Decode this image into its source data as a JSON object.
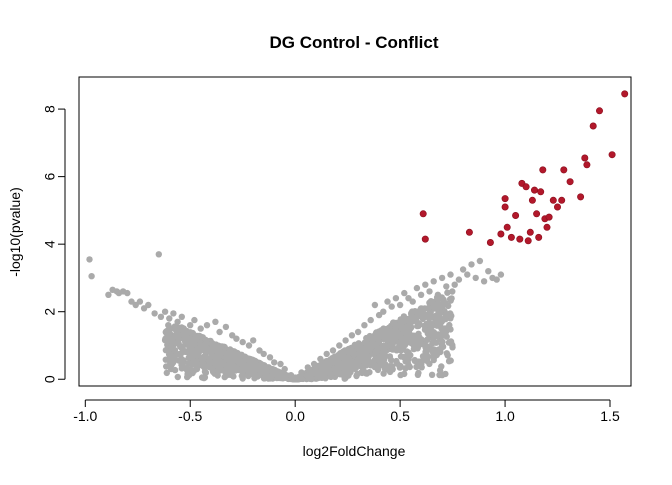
{
  "chart_data": {
    "type": "scatter",
    "title": "DG Control - Conflict",
    "xlabel": "log2FoldChange",
    "ylabel": "-log10(pvalue)",
    "xlim": [
      -1.03,
      1.6
    ],
    "ylim": [
      -0.2,
      8.95
    ],
    "xticks": [
      -1.0,
      -0.5,
      0.0,
      0.5,
      1.0,
      1.5
    ],
    "xtick_labels": [
      "-1.0",
      "-0.5",
      "0.0",
      "0.5",
      "1.0",
      "1.5"
    ],
    "yticks": [
      0,
      2,
      4,
      6,
      8
    ],
    "ytick_labels": [
      "0",
      "2",
      "4",
      "6",
      "8"
    ],
    "grid": false,
    "legend": "none",
    "colors": {
      "significant": "#b2182b",
      "nonsignificant": "#aaaaaa",
      "axis": "#000000"
    },
    "series": [
      {
        "color": "#aaaaaa",
        "points": [
          [
            -0.98,
            3.55
          ],
          [
            -0.97,
            3.05
          ],
          [
            -0.89,
            2.5
          ],
          [
            -0.87,
            2.65
          ],
          [
            -0.85,
            2.6
          ],
          [
            -0.84,
            2.55
          ],
          [
            -0.82,
            2.6
          ],
          [
            -0.8,
            2.55
          ],
          [
            -0.78,
            2.3
          ],
          [
            -0.76,
            2.2
          ],
          [
            -0.74,
            2.3
          ],
          [
            -0.72,
            2.1
          ],
          [
            -0.7,
            2.2
          ],
          [
            -0.67,
            1.95
          ],
          [
            -0.65,
            3.7
          ],
          [
            -0.64,
            1.85
          ],
          [
            -0.62,
            2.0
          ],
          [
            -0.6,
            1.8
          ],
          [
            -0.58,
            1.95
          ],
          [
            -0.56,
            1.7
          ],
          [
            -0.54,
            1.85
          ],
          [
            -0.5,
            1.6
          ],
          [
            -0.48,
            1.75
          ],
          [
            -0.45,
            1.5
          ],
          [
            -0.42,
            1.6
          ],
          [
            -0.38,
            1.7
          ],
          [
            -0.36,
            1.4
          ],
          [
            -0.33,
            1.55
          ],
          [
            -0.3,
            1.3
          ],
          [
            -0.28,
            1.2
          ],
          [
            -0.25,
            1.1
          ],
          [
            -0.22,
            1.0
          ],
          [
            -0.2,
            1.15
          ],
          [
            -0.17,
            0.85
          ],
          [
            -0.15,
            0.75
          ],
          [
            -0.12,
            0.65
          ],
          [
            -0.1,
            0.5
          ],
          [
            -0.07,
            0.45
          ],
          [
            -0.05,
            0.3
          ],
          [
            -0.02,
            0.12
          ],
          [
            0.0,
            0.05
          ],
          [
            0.03,
            0.2
          ],
          [
            0.06,
            0.35
          ],
          [
            0.09,
            0.45
          ],
          [
            0.12,
            0.6
          ],
          [
            0.15,
            0.75
          ],
          [
            0.18,
            0.85
          ],
          [
            0.21,
            1.0
          ],
          [
            0.24,
            1.15
          ],
          [
            0.27,
            1.3
          ],
          [
            0.3,
            1.4
          ],
          [
            0.33,
            1.6
          ],
          [
            0.36,
            1.75
          ],
          [
            0.38,
            2.2
          ],
          [
            0.4,
            1.9
          ],
          [
            0.42,
            2.0
          ],
          [
            0.44,
            2.3
          ],
          [
            0.46,
            2.15
          ],
          [
            0.48,
            2.4
          ],
          [
            0.5,
            2.2
          ],
          [
            0.52,
            2.55
          ],
          [
            0.54,
            2.4
          ],
          [
            0.56,
            2.3
          ],
          [
            0.58,
            2.7
          ],
          [
            0.6,
            2.5
          ],
          [
            0.62,
            2.8
          ],
          [
            0.64,
            2.6
          ],
          [
            0.66,
            2.9
          ],
          [
            0.68,
            2.5
          ],
          [
            0.7,
            3.0
          ],
          [
            0.72,
            2.75
          ],
          [
            0.74,
            3.1
          ],
          [
            0.76,
            2.8
          ],
          [
            0.78,
            2.95
          ],
          [
            0.8,
            3.25
          ],
          [
            0.82,
            3.1
          ],
          [
            0.84,
            3.4
          ],
          [
            0.86,
            3.0
          ],
          [
            0.88,
            3.5
          ],
          [
            0.9,
            2.9
          ],
          [
            0.92,
            3.2
          ],
          [
            0.94,
            3.0
          ],
          [
            0.96,
            2.95
          ],
          [
            0.98,
            3.1
          ]
        ]
      },
      {
        "color": "#b2182b",
        "points": [
          [
            0.61,
            4.9
          ],
          [
            0.62,
            4.15
          ],
          [
            0.83,
            4.35
          ],
          [
            0.93,
            4.05
          ],
          [
            0.98,
            4.3
          ],
          [
            1.0,
            5.35
          ],
          [
            1.0,
            5.1
          ],
          [
            1.01,
            4.5
          ],
          [
            1.03,
            4.2
          ],
          [
            1.05,
            4.85
          ],
          [
            1.07,
            4.15
          ],
          [
            1.08,
            5.8
          ],
          [
            1.1,
            5.7
          ],
          [
            1.11,
            4.1
          ],
          [
            1.12,
            4.35
          ],
          [
            1.13,
            5.3
          ],
          [
            1.14,
            5.6
          ],
          [
            1.15,
            4.9
          ],
          [
            1.16,
            4.2
          ],
          [
            1.17,
            5.55
          ],
          [
            1.18,
            6.2
          ],
          [
            1.19,
            4.75
          ],
          [
            1.2,
            4.5
          ],
          [
            1.21,
            4.8
          ],
          [
            1.23,
            5.3
          ],
          [
            1.25,
            5.1
          ],
          [
            1.27,
            5.3
          ],
          [
            1.28,
            6.2
          ],
          [
            1.31,
            5.85
          ],
          [
            1.36,
            5.4
          ],
          [
            1.38,
            6.55
          ],
          [
            1.39,
            6.35
          ],
          [
            1.42,
            7.5
          ],
          [
            1.45,
            7.95
          ],
          [
            1.51,
            6.65
          ],
          [
            1.57,
            8.45
          ]
        ]
      }
    ]
  }
}
